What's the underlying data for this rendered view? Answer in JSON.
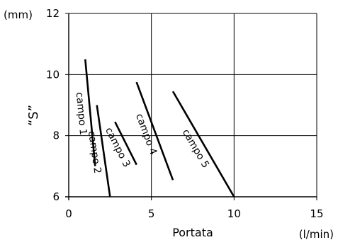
{
  "chart_data": {
    "type": "line",
    "xlabel": "Portata",
    "ylabel": "“S”",
    "x_unit": "(l/min)",
    "y_unit": "(mm)",
    "xlim": [
      0,
      15
    ],
    "ylim": [
      6,
      12
    ],
    "x_ticks": [
      0,
      5,
      10,
      15
    ],
    "y_ticks": [
      6,
      8,
      10,
      12
    ],
    "grid": true,
    "colors": {
      "line": "#000000",
      "grid": "#000000",
      "background": "#ffffff"
    },
    "series": [
      {
        "name": "campo 1",
        "x": [
          1.0,
          1.6
        ],
        "y": [
          10.5,
          7.0
        ]
      },
      {
        "name": "campo 2",
        "x": [
          1.7,
          2.5
        ],
        "y": [
          9.0,
          6.0
        ]
      },
      {
        "name": "campo 3",
        "x": [
          2.8,
          4.1
        ],
        "y": [
          8.45,
          7.05
        ]
      },
      {
        "name": "campo 4",
        "x": [
          4.1,
          6.3
        ],
        "y": [
          9.75,
          6.55
        ]
      },
      {
        "name": "campo 5",
        "x": [
          6.3,
          10.0
        ],
        "y": [
          9.45,
          6.0
        ]
      }
    ]
  }
}
